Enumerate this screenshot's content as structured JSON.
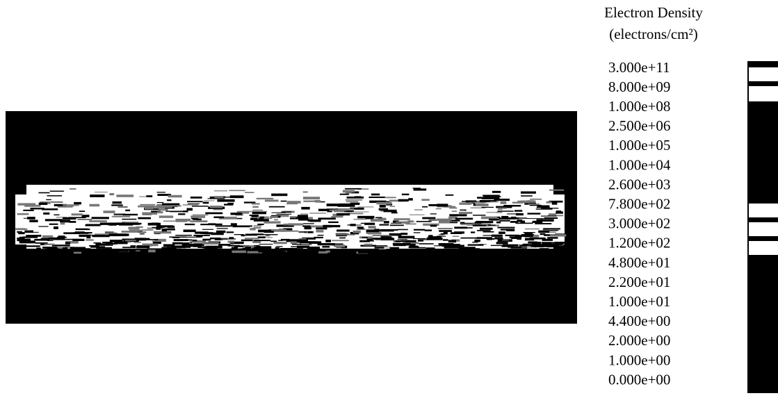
{
  "legend": {
    "title": "Electron Density",
    "unit_label": "(electrons/cm²)",
    "levels": [
      "3.000e+11",
      "8.000e+09",
      "1.000e+08",
      "2.500e+06",
      "1.000e+05",
      "1.000e+04",
      "2.600e+03",
      "7.800e+02",
      "3.000e+02",
      "1.200e+02",
      "4.800e+01",
      "2.200e+01",
      "1.000e+01",
      "4.400e+00",
      "2.000e+00",
      "1.000e+00",
      "0.000e+00"
    ]
  }
}
